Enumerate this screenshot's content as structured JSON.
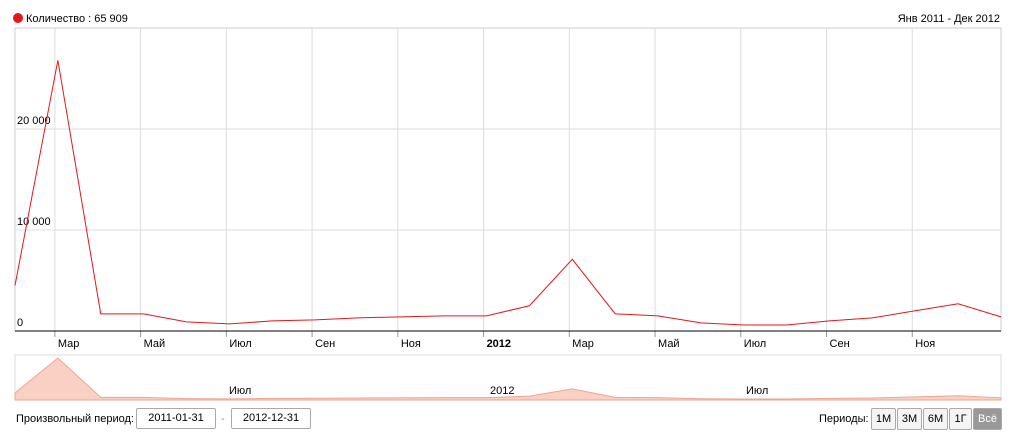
{
  "chart_data": {
    "type": "line",
    "legend_text": "Количество : 65 909",
    "range_text": "Янв 2011 - Дек 2012",
    "color": "#e8161b",
    "values": [
      4500,
      26800,
      1700,
      1700,
      900,
      700,
      1000,
      1100,
      1300,
      1400,
      1500,
      1500,
      2500,
      7100,
      1700,
      1500,
      800,
      600,
      600,
      1000,
      1300,
      2000,
      2700,
      1400
    ],
    "x_labels": [
      "Мар",
      "Май",
      "Июл",
      "Сен",
      "Ноя",
      "2012",
      "Мар",
      "Май",
      "Июл",
      "Сен",
      "Ноя"
    ],
    "ylim": [
      0,
      30000
    ],
    "yticks": [
      0,
      {
        "value": 10000,
        "label": "10 000"
      },
      {
        "value": 20000,
        "label": "20 000"
      }
    ],
    "grid": true,
    "navigator_labels": [
      "Июл",
      "2012",
      "Июл"
    ]
  },
  "controls": {
    "period_label": "Произвольный период:",
    "start": "2011-01-31",
    "separator": "-",
    "end": "2012-12-31",
    "periods_label": "Периоды:",
    "buttons": [
      "1М",
      "3М",
      "6М",
      "1Г",
      "Всё"
    ]
  }
}
